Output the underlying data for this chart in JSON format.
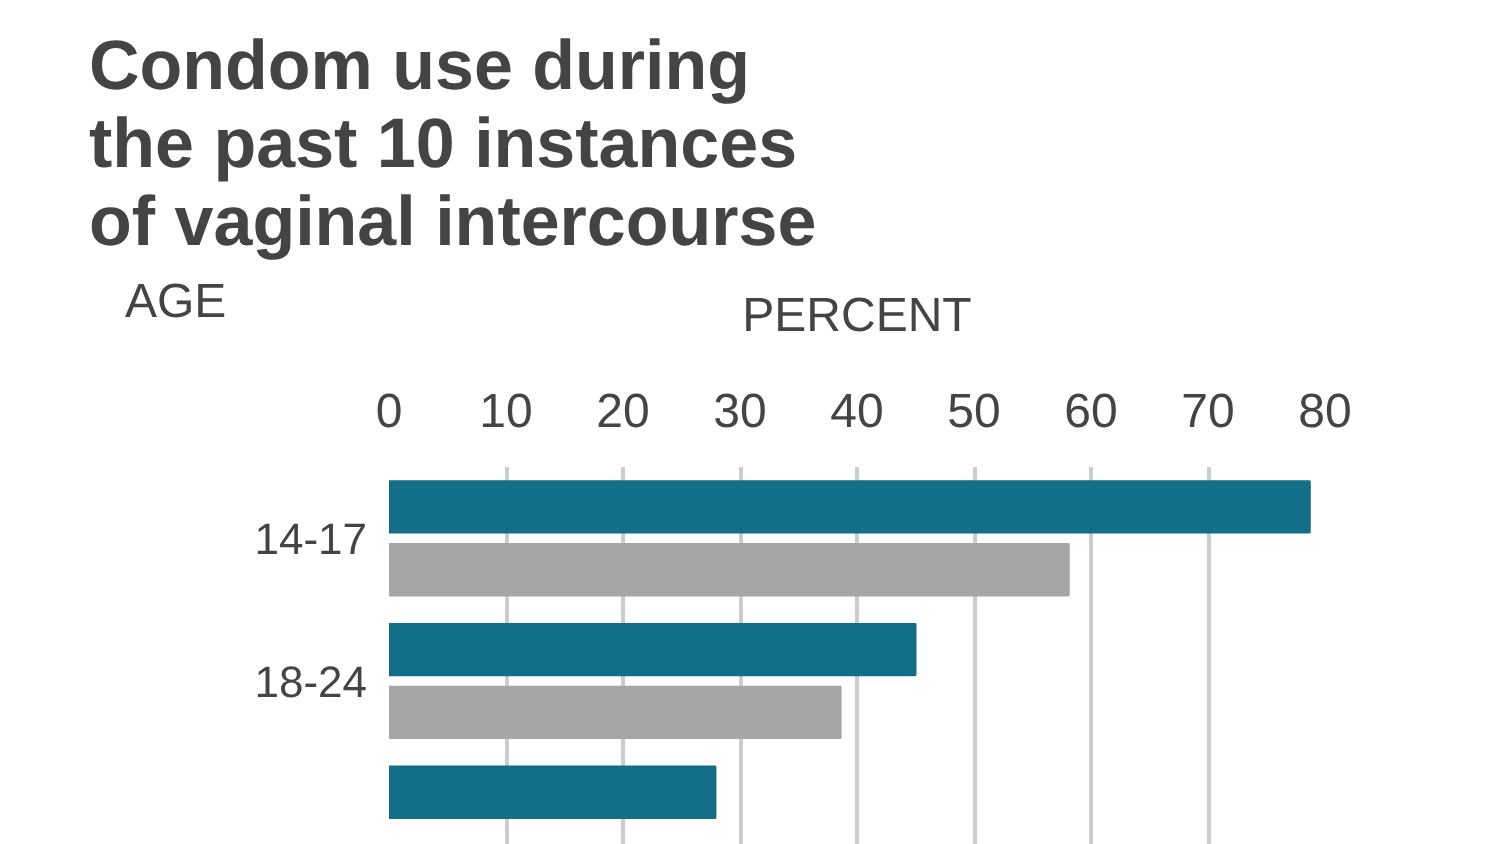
{
  "chart_data": {
    "type": "bar",
    "orientation": "horizontal",
    "title": "Condom use during\nthe past 10 instances\nof vaginal intercourse",
    "xlabel": "PERCENT",
    "ylabel": "AGE",
    "categories": [
      "14-17",
      "18-24",
      null
    ],
    "series": [
      {
        "color": "#136f87",
        "values": [
          78.7,
          45.0,
          27.9
        ]
      },
      {
        "color": "#a6a6a6",
        "values": [
          58.1,
          38.6,
          null
        ]
      }
    ],
    "xlim": [
      0,
      80
    ],
    "xticks": [
      0,
      10,
      20,
      30,
      40,
      50,
      60,
      70,
      80
    ],
    "grid": "x"
  }
}
